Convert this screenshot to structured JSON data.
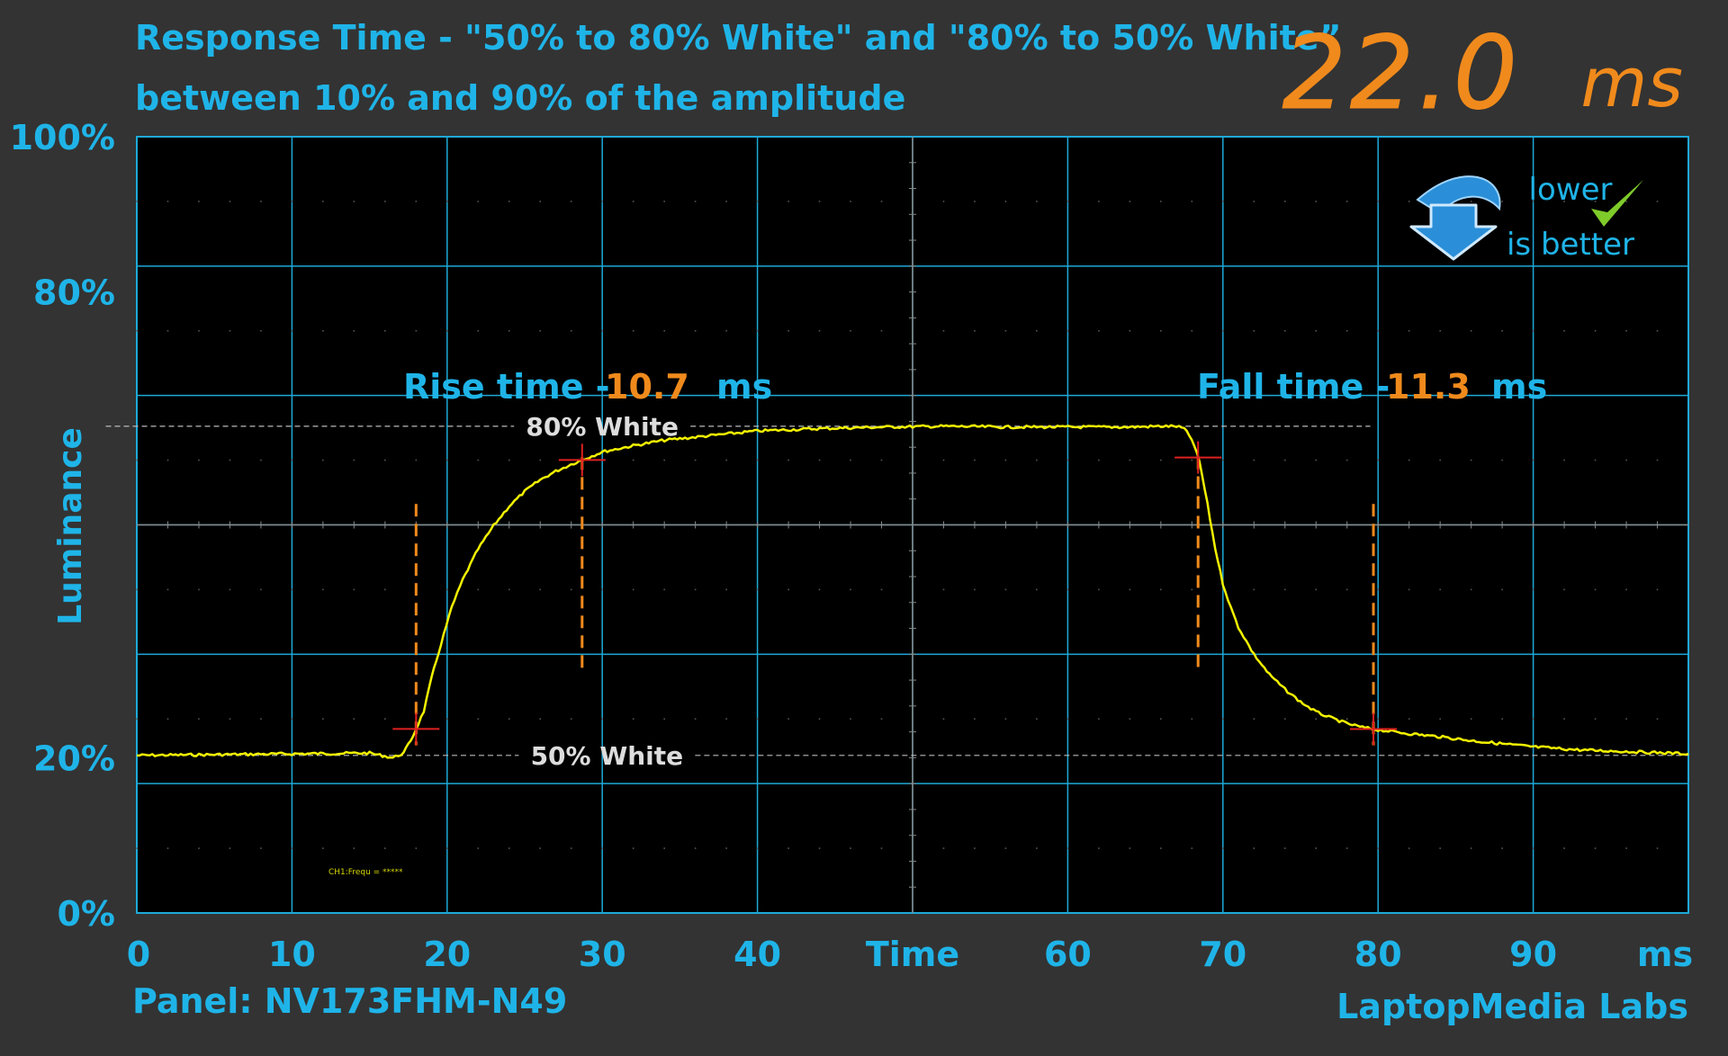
{
  "header": {
    "title_line1": "Response Time - \"50% to 80% White\" and \"80% to 50% White”",
    "title_line2": "between 10% and 90% of the amplitude",
    "total_value": "22.0",
    "total_unit": "ms"
  },
  "badge": {
    "line1": "lower",
    "line2": "is better"
  },
  "rise": {
    "label": "Rise time -",
    "value": "10.7",
    "unit": "ms"
  },
  "fall": {
    "label": "Fall time -",
    "value": "11.3",
    "unit": "ms"
  },
  "levels": {
    "high_label": "80% White",
    "low_label": "50% White"
  },
  "footer": {
    "panel": "Panel: NV173FHM-N49",
    "brand": "LaptopMedia Labs"
  },
  "scope_readout": "CH1:Frequ = *****",
  "colors": {
    "background": "#333333",
    "plot_bg": "#000000",
    "grid": "#1ea9d8",
    "text_blue": "#1fb4e8",
    "orange": "#f08a1c",
    "trace": "#f2f200",
    "marker_red": "#e02020"
  },
  "chart_data": {
    "type": "line",
    "title": "Response Time - \"50% to 80% White\" and \"80% to 50% White” between 10% and 90% of the amplitude",
    "xlabel": "Time",
    "x_unit": "ms",
    "ylabel": "Luminance",
    "xlim": [
      0,
      100
    ],
    "ylim": [
      0,
      100
    ],
    "x_ticks": [
      "0",
      "10",
      "20",
      "30",
      "40",
      "Time",
      "60",
      "70",
      "80",
      "90",
      "ms"
    ],
    "y_ticks": [
      "100%",
      "80%",
      "20%",
      "0%"
    ],
    "y_tick_values": [
      100,
      80,
      20,
      0
    ],
    "grid": true,
    "reference_lines": [
      {
        "label": "80% White",
        "y": 62.7
      },
      {
        "label": "50% White",
        "y": 20.3
      }
    ],
    "rise_markers_x": [
      18.0,
      28.7
    ],
    "fall_markers_x": [
      68.4,
      79.7
    ],
    "series": [
      {
        "x": [
          0,
          5,
          10,
          15,
          16.5,
          17.2,
          17.8,
          18.5,
          19.0,
          19.6,
          20.3,
          21.0,
          22.0,
          23.0,
          24.0,
          25.0,
          26.0,
          27.0,
          28.0,
          29.0,
          30.0,
          32.0,
          34.0,
          36.0,
          38.0,
          40.0,
          44.0,
          48.0,
          52.0,
          56.0,
          60.0,
          64.0,
          66.0,
          67.0,
          67.5,
          68.0,
          68.5,
          69.0,
          69.5,
          70.0,
          70.5,
          71.0,
          72.0,
          73.0,
          74.0,
          75.0,
          76.0,
          77.0,
          78.0,
          79.0,
          80.0,
          82.0,
          84.0,
          86.0,
          88.0,
          90.0,
          93.0,
          96.0,
          100.0
        ],
        "y": [
          20.3,
          20.4,
          20.5,
          20.6,
          20.0,
          20.6,
          22.8,
          26.0,
          30.3,
          34.6,
          39.4,
          42.9,
          46.9,
          49.9,
          52.4,
          54.3,
          55.8,
          56.9,
          57.8,
          58.6,
          59.4,
          60.2,
          60.9,
          61.3,
          61.7,
          62.1,
          62.4,
          62.6,
          62.7,
          62.6,
          62.6,
          62.6,
          62.7,
          62.7,
          62.4,
          61.0,
          58.1,
          52.7,
          47.0,
          42.4,
          39.4,
          36.8,
          33.3,
          30.7,
          28.8,
          27.2,
          25.9,
          25.1,
          24.4,
          23.9,
          23.6,
          23.1,
          22.7,
          22.2,
          21.8,
          21.4,
          21.0,
          20.8,
          20.5
        ]
      }
    ]
  }
}
